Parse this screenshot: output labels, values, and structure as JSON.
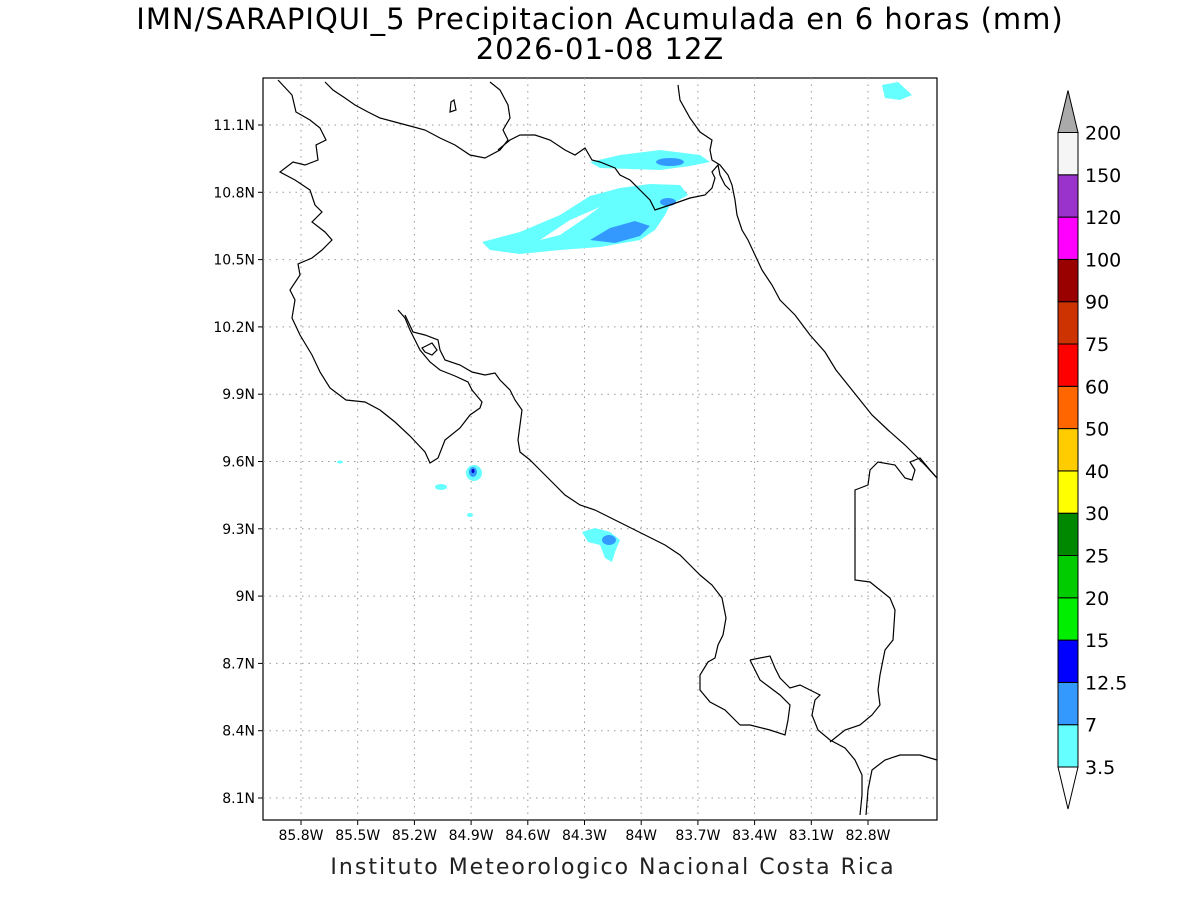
{
  "map": {
    "title_line1": "IMN/SARAPIQUI_5 Precipitacion Acumulada en 6 horas (mm)",
    "title_line2": "2026-01-08 12Z",
    "footer": "Instituto Meteorologico Nacional Costa Rica",
    "lon_ticks": [
      "85.8W",
      "85.5W",
      "85.2W",
      "84.9W",
      "84.6W",
      "84.3W",
      "84W",
      "83.7W",
      "83.4W",
      "83.1W",
      "82.8W"
    ],
    "lat_ticks": [
      "11.1N",
      "10.8N",
      "10.5N",
      "10.2N",
      "9.9N",
      "9.6N",
      "9.3N",
      "9N",
      "8.7N",
      "8.4N",
      "8.1N"
    ],
    "grid": "dotted",
    "coastline_color": "#000000"
  },
  "colorbar": {
    "labels": [
      "3.5",
      "7",
      "12.5",
      "15",
      "20",
      "25",
      "30",
      "40",
      "50",
      "60",
      "75",
      "90",
      "100",
      "120",
      "150",
      "200"
    ],
    "colors": [
      "#66ffff",
      "#3399ff",
      "#0000ff",
      "#00ee00",
      "#00cc00",
      "#008800",
      "#ffff00",
      "#ffcc00",
      "#ff6600",
      "#ff0000",
      "#cc3300",
      "#990000",
      "#ff00ff",
      "#9933cc",
      "#f5f5f5",
      "#aaaaaa"
    ],
    "orientation": "vertical",
    "extends": "both"
  }
}
